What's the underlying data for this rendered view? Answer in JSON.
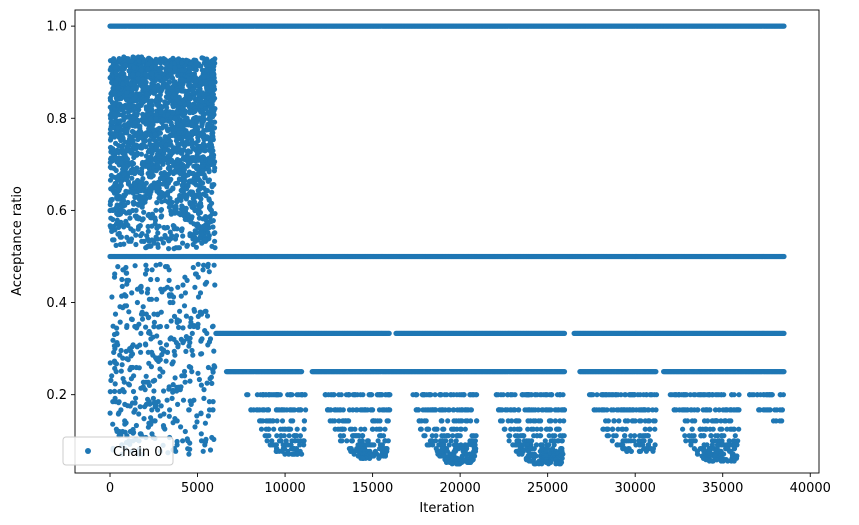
{
  "chart_data": {
    "type": "scatter",
    "title": "",
    "xlabel": "Iteration",
    "ylabel": "Acceptance ratio",
    "xlim": [
      -2000,
      40500
    ],
    "ylim": [
      0.03,
      1.035
    ],
    "x_ticks": [
      0,
      5000,
      10000,
      15000,
      20000,
      25000,
      30000,
      35000,
      40000
    ],
    "x_tick_labels": [
      "0",
      "5000",
      "10000",
      "15000",
      "20000",
      "25000",
      "30000",
      "35000",
      "40000"
    ],
    "y_ticks": [
      0.2,
      0.4,
      0.6,
      0.8,
      1.0
    ],
    "y_tick_labels": [
      "0.2",
      "0.4",
      "0.6",
      "0.8",
      "1.0"
    ],
    "grid": false,
    "legend_placement": "lower-left",
    "series": [
      {
        "name": "Chain 0",
        "color": "#1f77b4",
        "marker": "circle",
        "x_range": [
          0,
          38500
        ],
        "dense_levels": [
          1.0,
          0.5,
          0.333,
          0.25
        ],
        "early_phase_end_iteration": 6000,
        "early_phase_y_range": [
          0.07,
          0.94
        ],
        "late_sparse_levels": [
          0.2,
          0.167,
          0.143,
          0.125,
          0.111,
          0.1,
          0.091,
          0.083,
          0.077,
          0.071,
          0.067,
          0.062,
          0.059,
          0.056,
          0.053,
          0.05
        ],
        "late_clusters": [
          {
            "x_range": [
              7800,
              11200
            ],
            "min_y": 0.071
          },
          {
            "x_range": [
              12200,
              16000
            ],
            "min_y": 0.062
          },
          {
            "x_range": [
              17300,
              21000
            ],
            "min_y": 0.05
          },
          {
            "x_range": [
              22000,
              26000
            ],
            "min_y": 0.05
          },
          {
            "x_range": [
              27300,
              31300
            ],
            "min_y": 0.077
          },
          {
            "x_range": [
              32000,
              36000
            ],
            "min_y": 0.056
          },
          {
            "x_range": [
              36500,
              38500
            ],
            "min_y": 0.143
          }
        ],
        "gaps_in_0.333_level": [
          [
            16000,
            16300
          ],
          [
            26000,
            26500
          ]
        ],
        "gaps_in_0.25_level": [
          [
            11000,
            11500
          ],
          [
            26000,
            26800
          ],
          [
            31200,
            31600
          ]
        ]
      }
    ]
  }
}
